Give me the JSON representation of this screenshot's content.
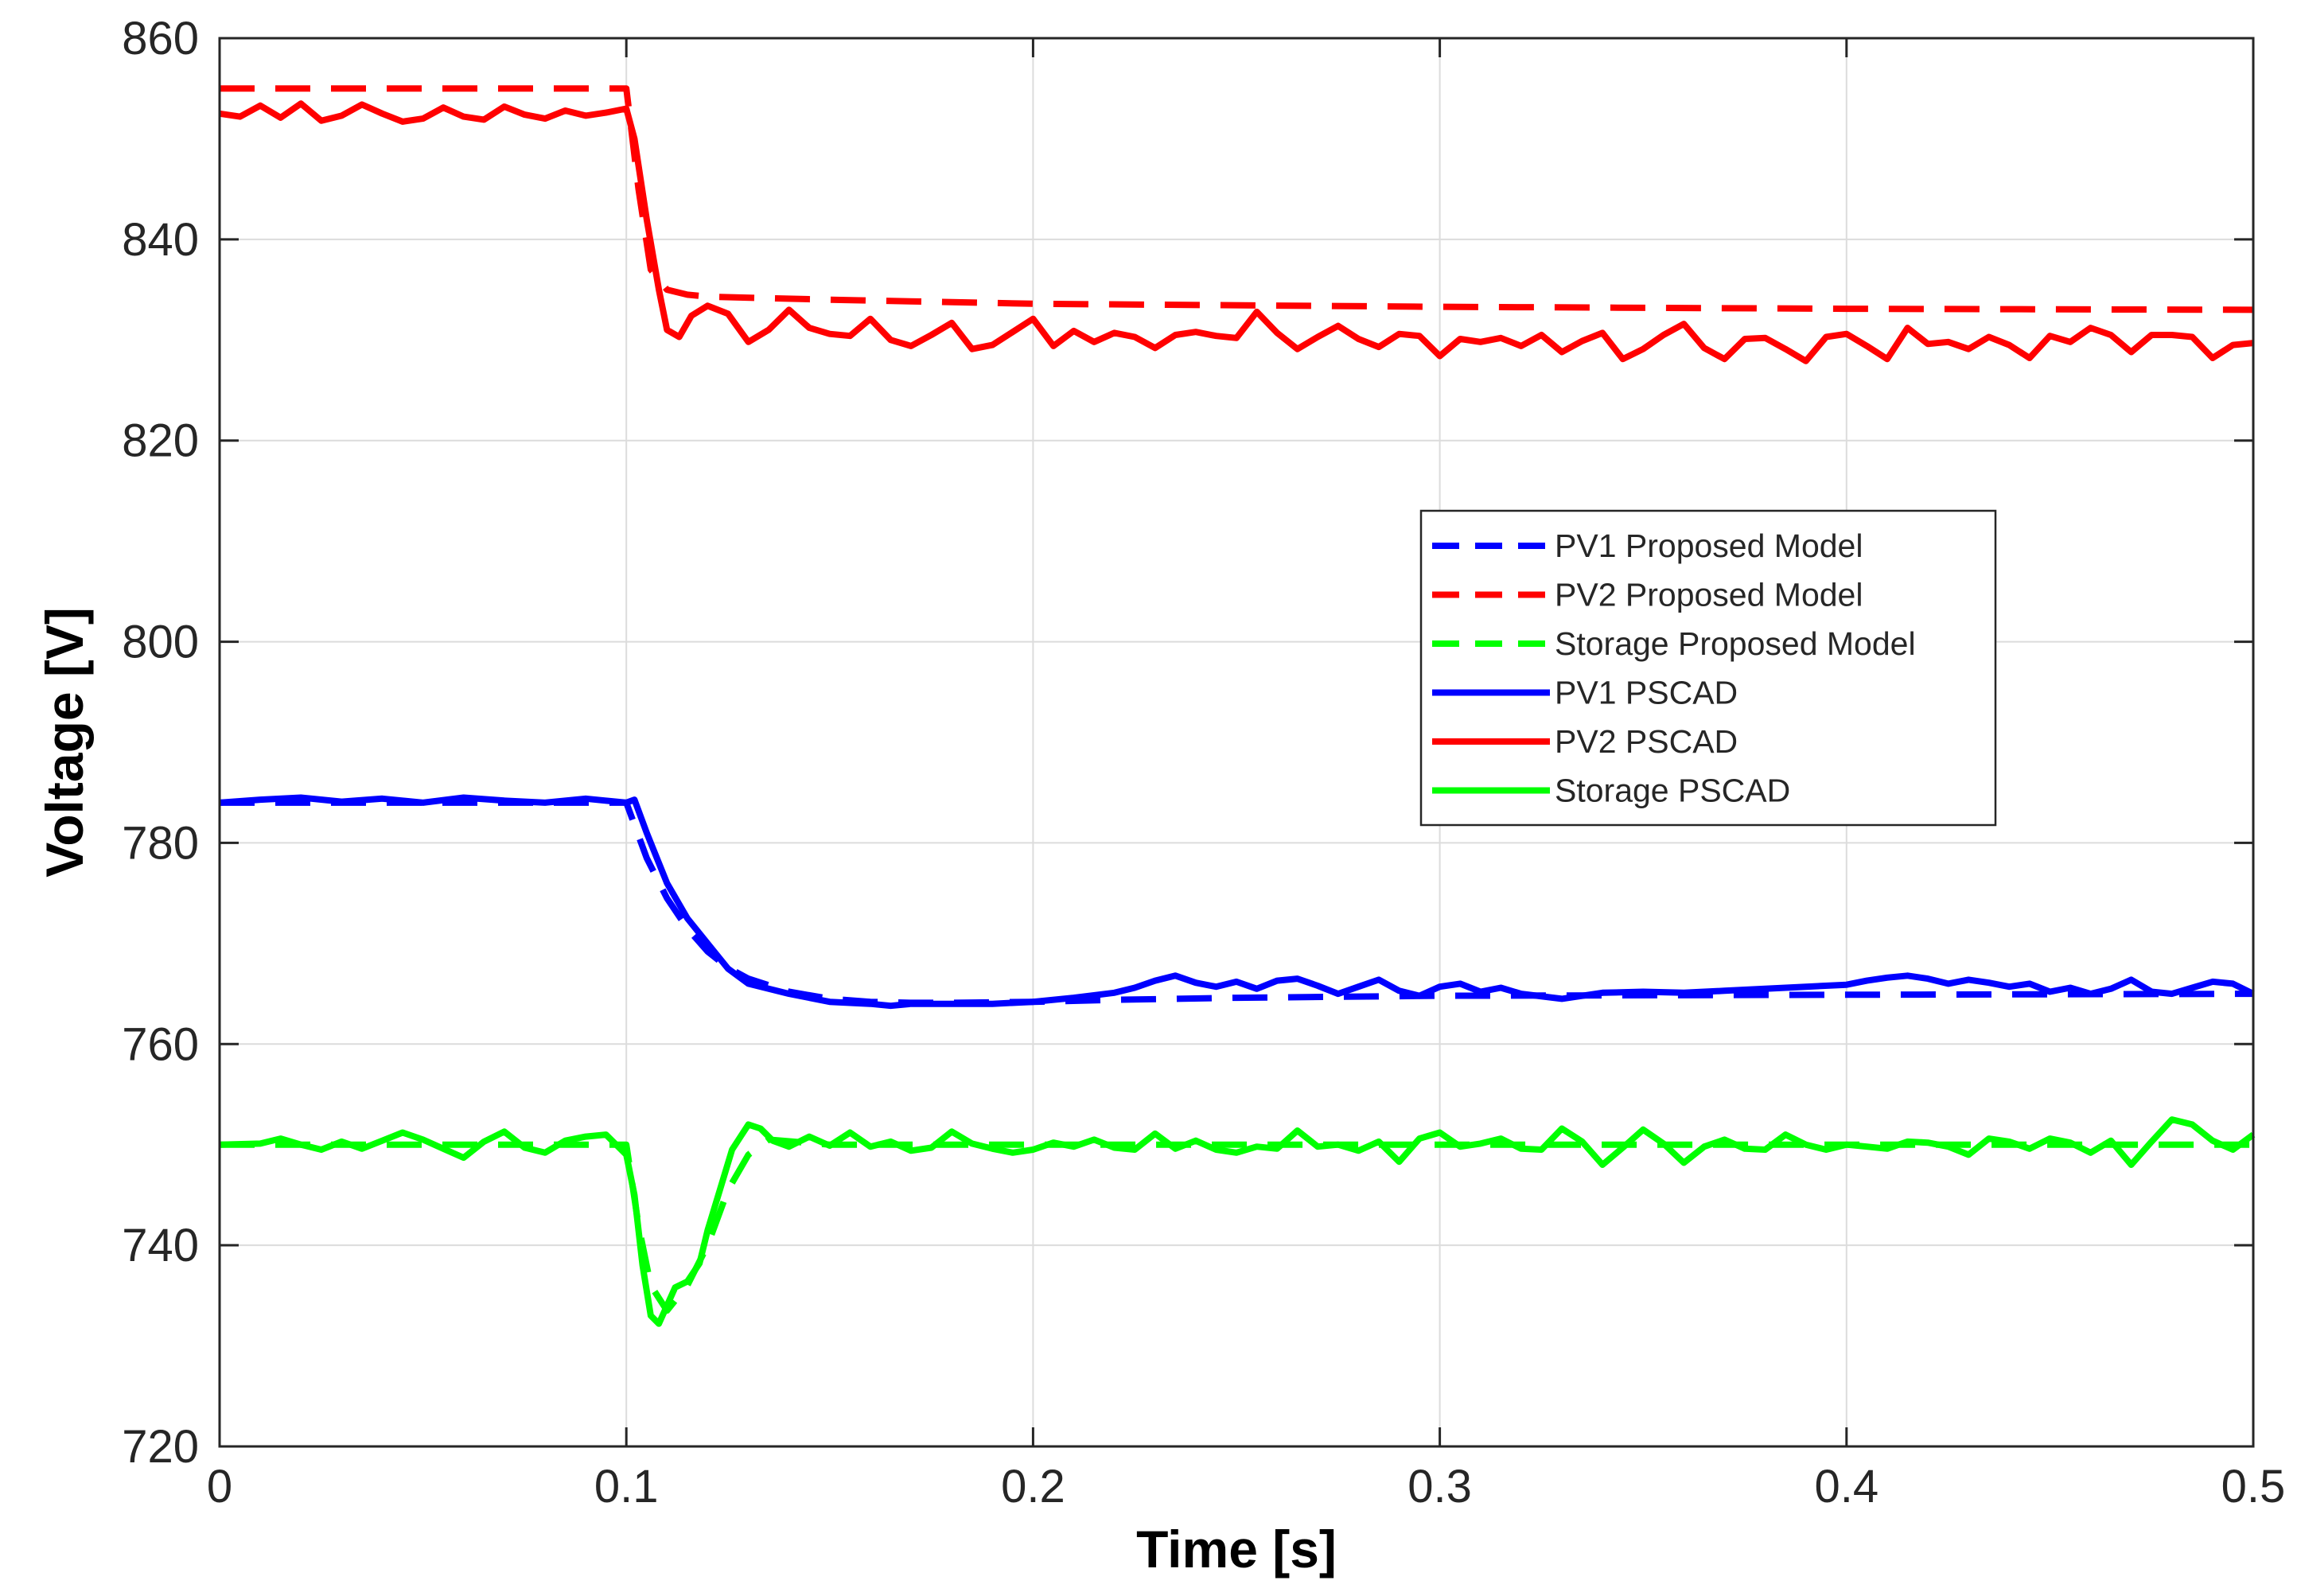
{
  "chart_data": {
    "type": "line",
    "title": "",
    "xlabel": "Time [s]",
    "ylabel": "Voltage [V]",
    "xlim": [
      0,
      0.5
    ],
    "ylim": [
      720,
      860
    ],
    "xticks": [
      0,
      0.1,
      0.2,
      0.3,
      0.4,
      0.5
    ],
    "xtick_labels": [
      "0",
      "0.1",
      "0.2",
      "0.3",
      "0.4",
      "0.5"
    ],
    "yticks": [
      720,
      740,
      760,
      780,
      800,
      820,
      840,
      860
    ],
    "ytick_labels": [
      "720",
      "740",
      "760",
      "780",
      "800",
      "820",
      "840",
      "860"
    ],
    "grid": true,
    "legend_position": "center-right",
    "series": [
      {
        "name": "PV1 Proposed Model",
        "color": "#0000ff",
        "style": "dashed",
        "x": [
          0,
          0.1,
          0.105,
          0.11,
          0.115,
          0.12,
          0.125,
          0.13,
          0.14,
          0.15,
          0.16,
          0.17,
          0.18,
          0.2,
          0.22,
          0.25,
          0.3,
          0.4,
          0.5
        ],
        "y": [
          784,
          784,
          778.5,
          774.5,
          771.5,
          769.2,
          767.6,
          766.5,
          765.2,
          764.5,
          764.2,
          764.1,
          764.1,
          764.2,
          764.4,
          764.6,
          764.8,
          764.9,
          765
        ]
      },
      {
        "name": "PV2 Proposed Model",
        "color": "#ff0000",
        "style": "dashed",
        "x": [
          0,
          0.1,
          0.103,
          0.106,
          0.11,
          0.115,
          0.12,
          0.15,
          0.2,
          0.3,
          0.4,
          0.5
        ],
        "y": [
          855,
          855,
          845,
          837,
          835,
          834.5,
          834.3,
          834,
          833.6,
          833.3,
          833.1,
          833
        ]
      },
      {
        "name": "Storage Proposed Model",
        "color": "#00ff00",
        "style": "dashed",
        "x": [
          0,
          0.1,
          0.103,
          0.106,
          0.11,
          0.115,
          0.12,
          0.125,
          0.13,
          0.135,
          0.15,
          0.2,
          0.3,
          0.4,
          0.5
        ],
        "y": [
          750,
          750,
          742,
          736,
          733.5,
          736,
          740,
          745.5,
          749,
          750.5,
          750,
          750,
          750,
          750,
          750
        ]
      },
      {
        "name": "PV1 PSCAD",
        "color": "#0000ff",
        "style": "solid",
        "x": [
          0,
          0.01,
          0.02,
          0.03,
          0.04,
          0.05,
          0.06,
          0.07,
          0.08,
          0.09,
          0.1,
          0.102,
          0.105,
          0.108,
          0.11,
          0.115,
          0.12,
          0.125,
          0.13,
          0.14,
          0.15,
          0.16,
          0.165,
          0.17,
          0.18,
          0.19,
          0.2,
          0.21,
          0.22,
          0.225,
          0.23,
          0.235,
          0.24,
          0.245,
          0.25,
          0.255,
          0.26,
          0.265,
          0.27,
          0.275,
          0.28,
          0.285,
          0.29,
          0.295,
          0.3,
          0.305,
          0.31,
          0.315,
          0.32,
          0.33,
          0.34,
          0.35,
          0.36,
          0.37,
          0.38,
          0.39,
          0.4,
          0.405,
          0.41,
          0.415,
          0.42,
          0.425,
          0.43,
          0.435,
          0.44,
          0.445,
          0.45,
          0.455,
          0.46,
          0.465,
          0.47,
          0.475,
          0.48,
          0.485,
          0.49,
          0.495,
          0.5
        ],
        "y": [
          784,
          784.3,
          784.5,
          784.1,
          784.4,
          784,
          784.5,
          784.2,
          784,
          784.4,
          784,
          784.3,
          781,
          778,
          776,
          772.5,
          770,
          767.5,
          766,
          765,
          764.2,
          764,
          763.8,
          764,
          764,
          764,
          764.2,
          764.6,
          765.1,
          765.6,
          766.3,
          766.8,
          766.1,
          765.7,
          766.2,
          765.5,
          766.3,
          766.5,
          765.8,
          765,
          765.7,
          766.4,
          765.3,
          764.8,
          765.7,
          766,
          765.2,
          765.6,
          765,
          764.5,
          765.1,
          765.2,
          765.1,
          765.3,
          765.5,
          765.7,
          765.9,
          766.3,
          766.6,
          766.8,
          766.5,
          766,
          766.4,
          766.1,
          765.7,
          766,
          765.2,
          765.6,
          765,
          765.5,
          766.4,
          765.2,
          765,
          765.6,
          766.2,
          766,
          765
        ]
      },
      {
        "name": "PV2 PSCAD",
        "color": "#ff0000",
        "style": "solid",
        "x": [
          0,
          0.005,
          0.01,
          0.015,
          0.02,
          0.025,
          0.03,
          0.035,
          0.04,
          0.045,
          0.05,
          0.055,
          0.06,
          0.065,
          0.07,
          0.075,
          0.08,
          0.085,
          0.09,
          0.095,
          0.1,
          0.102,
          0.105,
          0.108,
          0.11,
          0.113,
          0.116,
          0.12,
          0.125,
          0.13,
          0.135,
          0.14,
          0.145,
          0.15,
          0.155,
          0.16,
          0.165,
          0.17,
          0.175,
          0.18,
          0.185,
          0.19,
          0.195,
          0.2,
          0.205,
          0.21,
          0.215,
          0.22,
          0.225,
          0.23,
          0.235,
          0.24,
          0.245,
          0.25,
          0.255,
          0.26,
          0.265,
          0.27,
          0.275,
          0.28,
          0.285,
          0.29,
          0.295,
          0.3,
          0.305,
          0.31,
          0.315,
          0.32,
          0.325,
          0.33,
          0.335,
          0.34,
          0.345,
          0.35,
          0.355,
          0.36,
          0.365,
          0.37,
          0.375,
          0.38,
          0.385,
          0.39,
          0.395,
          0.4,
          0.405,
          0.41,
          0.415,
          0.42,
          0.425,
          0.43,
          0.435,
          0.44,
          0.445,
          0.45,
          0.455,
          0.46,
          0.465,
          0.47,
          0.475,
          0.48,
          0.485,
          0.49,
          0.495,
          0.5
        ],
        "y": [
          852.5,
          852.2,
          853.3,
          852.1,
          853.5,
          851.8,
          852.3,
          853.4,
          852.5,
          851.7,
          852,
          853.1,
          852.2,
          851.9,
          853.2,
          852.4,
          852,
          852.8,
          852.3,
          852.6,
          853,
          850,
          842,
          835,
          831,
          830.3,
          832.4,
          833.4,
          832.6,
          829.8,
          831,
          833,
          831.2,
          830.6,
          830.4,
          832.1,
          830,
          829.4,
          830.5,
          831.7,
          829.1,
          829.5,
          830.8,
          832.1,
          829.4,
          830.9,
          829.8,
          830.7,
          830.3,
          829.2,
          830.5,
          830.8,
          830.4,
          830.2,
          832.8,
          830.7,
          829.1,
          830.3,
          831.4,
          830.1,
          829.3,
          830.6,
          830.4,
          828.4,
          830.1,
          829.8,
          830.2,
          829.4,
          830.5,
          828.8,
          829.9,
          830.7,
          828.1,
          829.1,
          830.5,
          831.6,
          829.2,
          828.1,
          830.1,
          830.2,
          829.1,
          827.9,
          830.3,
          830.6,
          829.4,
          828.1,
          831.2,
          829.6,
          829.8,
          829.1,
          830.3,
          829.5,
          828.2,
          830.4,
          829.8,
          831.2,
          830.5,
          828.8,
          830.5,
          830.5,
          830.3,
          828.2,
          829.5,
          829.7
        ]
      },
      {
        "name": "Storage PSCAD",
        "color": "#00ff00",
        "style": "solid",
        "x": [
          0,
          0.01,
          0.015,
          0.02,
          0.025,
          0.03,
          0.035,
          0.04,
          0.045,
          0.05,
          0.055,
          0.06,
          0.065,
          0.07,
          0.075,
          0.08,
          0.085,
          0.09,
          0.095,
          0.1,
          0.102,
          0.104,
          0.106,
          0.108,
          0.11,
          0.112,
          0.115,
          0.118,
          0.12,
          0.123,
          0.126,
          0.13,
          0.133,
          0.136,
          0.14,
          0.145,
          0.15,
          0.155,
          0.16,
          0.165,
          0.17,
          0.175,
          0.18,
          0.185,
          0.19,
          0.195,
          0.2,
          0.205,
          0.21,
          0.215,
          0.22,
          0.225,
          0.23,
          0.235,
          0.24,
          0.245,
          0.25,
          0.255,
          0.26,
          0.265,
          0.27,
          0.275,
          0.28,
          0.285,
          0.29,
          0.295,
          0.3,
          0.305,
          0.31,
          0.315,
          0.32,
          0.325,
          0.33,
          0.335,
          0.34,
          0.345,
          0.35,
          0.355,
          0.36,
          0.365,
          0.37,
          0.375,
          0.38,
          0.385,
          0.39,
          0.395,
          0.4,
          0.405,
          0.41,
          0.415,
          0.42,
          0.425,
          0.43,
          0.435,
          0.44,
          0.445,
          0.45,
          0.455,
          0.46,
          0.465,
          0.47,
          0.475,
          0.48,
          0.485,
          0.49,
          0.495,
          0.5
        ],
        "y": [
          750,
          750.1,
          750.6,
          750,
          749.5,
          750.3,
          749.6,
          750.4,
          751.2,
          750.5,
          749.6,
          748.7,
          750.3,
          751.3,
          749.7,
          749.2,
          750.4,
          750.8,
          751,
          749,
          745,
          738,
          733,
          732.2,
          734,
          735.8,
          736.4,
          738.2,
          741.5,
          745.5,
          749.5,
          752,
          751.6,
          750.4,
          749.8,
          750.8,
          749.9,
          751.2,
          749.8,
          750.3,
          749.4,
          749.7,
          751.3,
          750.1,
          749.6,
          749.2,
          749.5,
          750.2,
          749.8,
          750.5,
          749.7,
          749.5,
          751.1,
          749.6,
          750.4,
          749.5,
          749.2,
          749.8,
          749.6,
          751.4,
          749.8,
          750,
          749.4,
          750.3,
          748.3,
          750.6,
          751.2,
          749.8,
          750.1,
          750.6,
          749.6,
          749.5,
          751.6,
          750.3,
          748,
          749.7,
          751.5,
          750.1,
          748.2,
          749.8,
          750.5,
          749.6,
          749.5,
          751,
          750,
          749.5,
          750,
          749.8,
          749.6,
          750.3,
          750.2,
          749.8,
          749,
          750.6,
          750.3,
          749.6,
          750.6,
          750.2,
          749.2,
          750.4,
          748,
          750.3,
          752.5,
          752,
          750.4,
          749.5,
          751
        ]
      }
    ]
  }
}
